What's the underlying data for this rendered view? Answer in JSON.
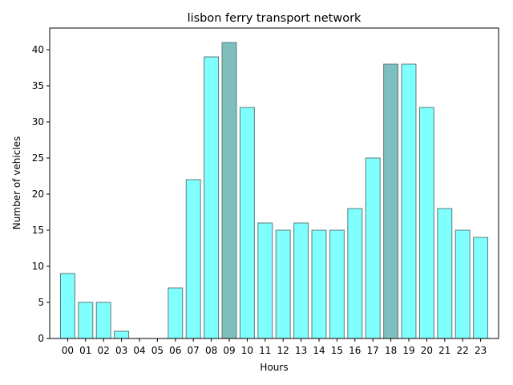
{
  "chart_data": {
    "type": "bar",
    "title": "lisbon ferry transport network",
    "xlabel": "Hours",
    "ylabel": "Number of vehicles",
    "categories": [
      "00",
      "01",
      "02",
      "03",
      "04",
      "05",
      "06",
      "07",
      "08",
      "09",
      "10",
      "11",
      "12",
      "13",
      "14",
      "15",
      "16",
      "17",
      "18",
      "19",
      "20",
      "21",
      "22",
      "23"
    ],
    "values": [
      9,
      5,
      5,
      1,
      0,
      0,
      7,
      22,
      39,
      41,
      32,
      16,
      15,
      16,
      15,
      15,
      18,
      25,
      38,
      38,
      32,
      18,
      15,
      14
    ],
    "highlighted_categories": [
      "09",
      "18"
    ],
    "ylim": [
      0,
      43
    ],
    "yticks": [
      0,
      5,
      10,
      15,
      20,
      25,
      30,
      35,
      40
    ],
    "grid": false,
    "colors": {
      "bar": "#80ffff",
      "bar_highlight": "#80bfbf",
      "bar_edge": "#5a7a7a"
    }
  }
}
